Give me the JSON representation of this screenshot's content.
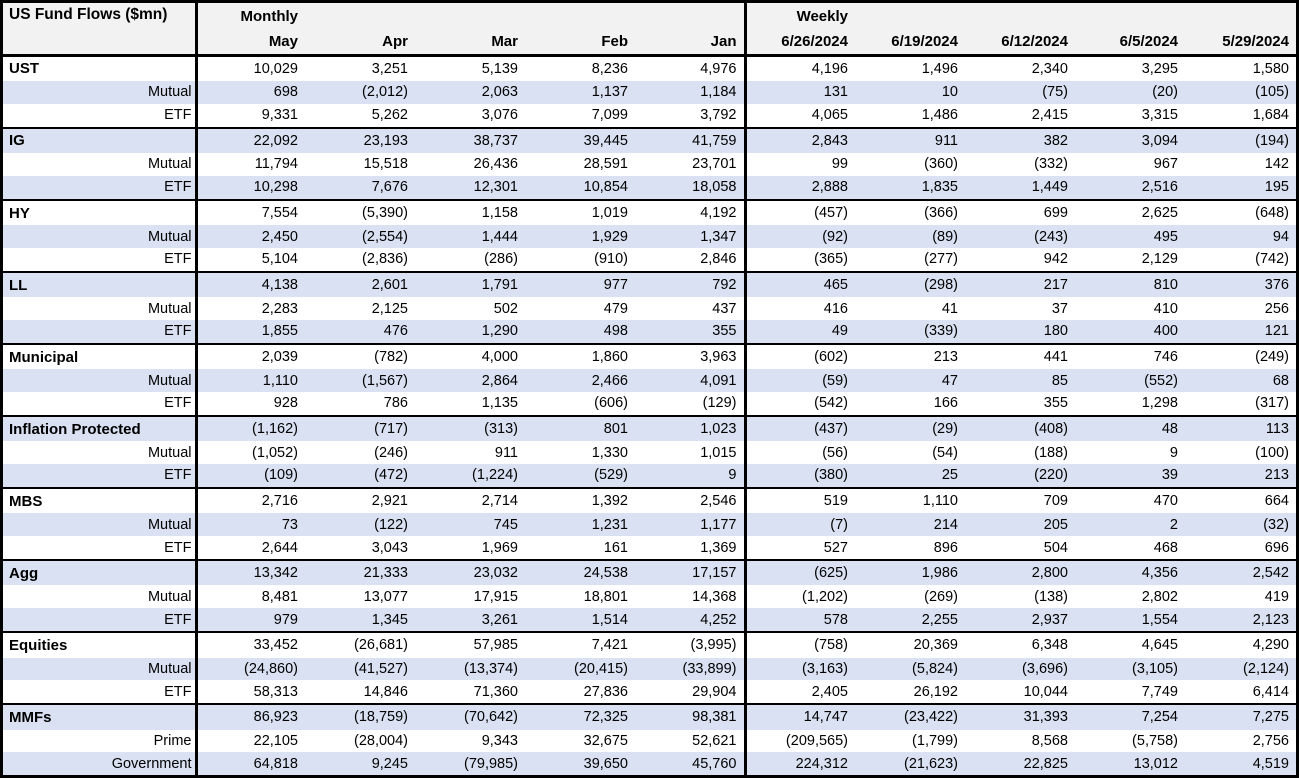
{
  "table": {
    "title": "US Fund Flows ($mn)",
    "monthly_label": "Monthly",
    "weekly_label": "Weekly",
    "monthly_columns": [
      "May",
      "Apr",
      "Mar",
      "Feb",
      "Jan"
    ],
    "weekly_columns": [
      "6/26/2024",
      "6/19/2024",
      "6/12/2024",
      "6/5/2024",
      "5/29/2024"
    ],
    "colors": {
      "stripe": "#D9E1F2",
      "header_bg": "#F2F2F2",
      "border": "#000000",
      "text": "#000000"
    },
    "groups": [
      {
        "rows": [
          {
            "label": "UST",
            "monthly": [
              "10,029",
              "3,251",
              "5,139",
              "8,236",
              "4,976"
            ],
            "weekly": [
              "4,196",
              "1,496",
              "2,340",
              "3,295",
              "1,580"
            ]
          },
          {
            "label": "Mutual",
            "monthly": [
              "698",
              "(2,012)",
              "2,063",
              "1,137",
              "1,184"
            ],
            "weekly": [
              "131",
              "10",
              "(75)",
              "(20)",
              "(105)"
            ]
          },
          {
            "label": "ETF",
            "monthly": [
              "9,331",
              "5,262",
              "3,076",
              "7,099",
              "3,792"
            ],
            "weekly": [
              "4,065",
              "1,486",
              "2,415",
              "3,315",
              "1,684"
            ]
          }
        ]
      },
      {
        "rows": [
          {
            "label": "IG",
            "monthly": [
              "22,092",
              "23,193",
              "38,737",
              "39,445",
              "41,759"
            ],
            "weekly": [
              "2,843",
              "911",
              "382",
              "3,094",
              "(194)"
            ]
          },
          {
            "label": "Mutual",
            "monthly": [
              "11,794",
              "15,518",
              "26,436",
              "28,591",
              "23,701"
            ],
            "weekly": [
              "99",
              "(360)",
              "(332)",
              "967",
              "142"
            ]
          },
          {
            "label": "ETF",
            "monthly": [
              "10,298",
              "7,676",
              "12,301",
              "10,854",
              "18,058"
            ],
            "weekly": [
              "2,888",
              "1,835",
              "1,449",
              "2,516",
              "195"
            ]
          }
        ]
      },
      {
        "rows": [
          {
            "label": "HY",
            "monthly": [
              "7,554",
              "(5,390)",
              "1,158",
              "1,019",
              "4,192"
            ],
            "weekly": [
              "(457)",
              "(366)",
              "699",
              "2,625",
              "(648)"
            ]
          },
          {
            "label": "Mutual",
            "monthly": [
              "2,450",
              "(2,554)",
              "1,444",
              "1,929",
              "1,347"
            ],
            "weekly": [
              "(92)",
              "(89)",
              "(243)",
              "495",
              "94"
            ]
          },
          {
            "label": "ETF",
            "monthly": [
              "5,104",
              "(2,836)",
              "(286)",
              "(910)",
              "2,846"
            ],
            "weekly": [
              "(365)",
              "(277)",
              "942",
              "2,129",
              "(742)"
            ]
          }
        ]
      },
      {
        "rows": [
          {
            "label": "LL",
            "monthly": [
              "4,138",
              "2,601",
              "1,791",
              "977",
              "792"
            ],
            "weekly": [
              "465",
              "(298)",
              "217",
              "810",
              "376"
            ]
          },
          {
            "label": "Mutual",
            "monthly": [
              "2,283",
              "2,125",
              "502",
              "479",
              "437"
            ],
            "weekly": [
              "416",
              "41",
              "37",
              "410",
              "256"
            ]
          },
          {
            "label": "ETF",
            "monthly": [
              "1,855",
              "476",
              "1,290",
              "498",
              "355"
            ],
            "weekly": [
              "49",
              "(339)",
              "180",
              "400",
              "121"
            ]
          }
        ]
      },
      {
        "rows": [
          {
            "label": "Municipal",
            "monthly": [
              "2,039",
              "(782)",
              "4,000",
              "1,860",
              "3,963"
            ],
            "weekly": [
              "(602)",
              "213",
              "441",
              "746",
              "(249)"
            ]
          },
          {
            "label": "Mutual",
            "monthly": [
              "1,110",
              "(1,567)",
              "2,864",
              "2,466",
              "4,091"
            ],
            "weekly": [
              "(59)",
              "47",
              "85",
              "(552)",
              "68"
            ]
          },
          {
            "label": "ETF",
            "monthly": [
              "928",
              "786",
              "1,135",
              "(606)",
              "(129)"
            ],
            "weekly": [
              "(542)",
              "166",
              "355",
              "1,298",
              "(317)"
            ]
          }
        ]
      },
      {
        "rows": [
          {
            "label": "Inflation Protected",
            "monthly": [
              "(1,162)",
              "(717)",
              "(313)",
              "801",
              "1,023"
            ],
            "weekly": [
              "(437)",
              "(29)",
              "(408)",
              "48",
              "113"
            ]
          },
          {
            "label": "Mutual",
            "monthly": [
              "(1,052)",
              "(246)",
              "911",
              "1,330",
              "1,015"
            ],
            "weekly": [
              "(56)",
              "(54)",
              "(188)",
              "9",
              "(100)"
            ]
          },
          {
            "label": "ETF",
            "monthly": [
              "(109)",
              "(472)",
              "(1,224)",
              "(529)",
              "9"
            ],
            "weekly": [
              "(380)",
              "25",
              "(220)",
              "39",
              "213"
            ]
          }
        ]
      },
      {
        "rows": [
          {
            "label": "MBS",
            "monthly": [
              "2,716",
              "2,921",
              "2,714",
              "1,392",
              "2,546"
            ],
            "weekly": [
              "519",
              "1,110",
              "709",
              "470",
              "664"
            ]
          },
          {
            "label": "Mutual",
            "monthly": [
              "73",
              "(122)",
              "745",
              "1,231",
              "1,177"
            ],
            "weekly": [
              "(7)",
              "214",
              "205",
              "2",
              "(32)"
            ]
          },
          {
            "label": "ETF",
            "monthly": [
              "2,644",
              "3,043",
              "1,969",
              "161",
              "1,369"
            ],
            "weekly": [
              "527",
              "896",
              "504",
              "468",
              "696"
            ]
          }
        ]
      },
      {
        "rows": [
          {
            "label": "Agg",
            "monthly": [
              "13,342",
              "21,333",
              "23,032",
              "24,538",
              "17,157"
            ],
            "weekly": [
              "(625)",
              "1,986",
              "2,800",
              "4,356",
              "2,542"
            ]
          },
          {
            "label": "Mutual",
            "monthly": [
              "8,481",
              "13,077",
              "17,915",
              "18,801",
              "14,368"
            ],
            "weekly": [
              "(1,202)",
              "(269)",
              "(138)",
              "2,802",
              "419"
            ]
          },
          {
            "label": "ETF",
            "monthly": [
              "979",
              "1,345",
              "3,261",
              "1,514",
              "4,252"
            ],
            "weekly": [
              "578",
              "2,255",
              "2,937",
              "1,554",
              "2,123"
            ]
          }
        ]
      },
      {
        "rows": [
          {
            "label": "Equities",
            "monthly": [
              "33,452",
              "(26,681)",
              "57,985",
              "7,421",
              "(3,995)"
            ],
            "weekly": [
              "(758)",
              "20,369",
              "6,348",
              "4,645",
              "4,290"
            ]
          },
          {
            "label": "Mutual",
            "monthly": [
              "(24,860)",
              "(41,527)",
              "(13,374)",
              "(20,415)",
              "(33,899)"
            ],
            "weekly": [
              "(3,163)",
              "(5,824)",
              "(3,696)",
              "(3,105)",
              "(2,124)"
            ]
          },
          {
            "label": "ETF",
            "monthly": [
              "58,313",
              "14,846",
              "71,360",
              "27,836",
              "29,904"
            ],
            "weekly": [
              "2,405",
              "26,192",
              "10,044",
              "7,749",
              "6,414"
            ]
          }
        ]
      },
      {
        "rows": [
          {
            "label": "MMFs",
            "monthly": [
              "86,923",
              "(18,759)",
              "(70,642)",
              "72,325",
              "98,381"
            ],
            "weekly": [
              "14,747",
              "(23,422)",
              "31,393",
              "7,254",
              "7,275"
            ]
          },
          {
            "label": "Prime",
            "monthly": [
              "22,105",
              "(28,004)",
              "9,343",
              "32,675",
              "52,621"
            ],
            "weekly": [
              "(209,565)",
              "(1,799)",
              "8,568",
              "(5,758)",
              "2,756"
            ]
          },
          {
            "label": "Government",
            "monthly": [
              "64,818",
              "9,245",
              "(79,985)",
              "39,650",
              "45,760"
            ],
            "weekly": [
              "224,312",
              "(21,623)",
              "22,825",
              "13,012",
              "4,519"
            ]
          }
        ]
      }
    ]
  }
}
